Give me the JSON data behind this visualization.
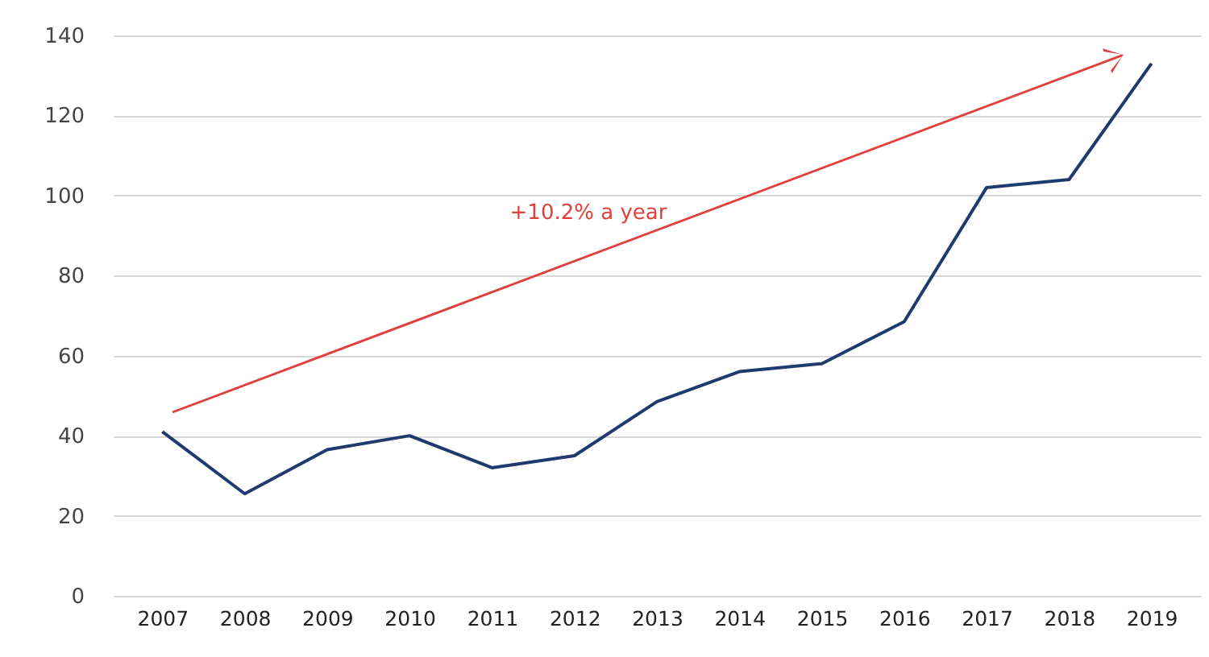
{
  "chart_data": {
    "type": "line",
    "categories": [
      "2007",
      "2008",
      "2009",
      "2010",
      "2011",
      "2012",
      "2013",
      "2014",
      "2015",
      "2016",
      "2017",
      "2018",
      "2019"
    ],
    "series": [
      {
        "color": "#1f3b6e",
        "values": [
          41,
          25.5,
          36.5,
          40,
          32,
          35,
          48.5,
          56,
          58,
          68.5,
          102,
          104,
          133
        ]
      }
    ],
    "ylim": [
      0,
      140
    ],
    "yticks": [
      0,
      20,
      40,
      60,
      80,
      100,
      120,
      140
    ],
    "grid": "y",
    "annotations": [
      "+10.2% a year"
    ]
  }
}
